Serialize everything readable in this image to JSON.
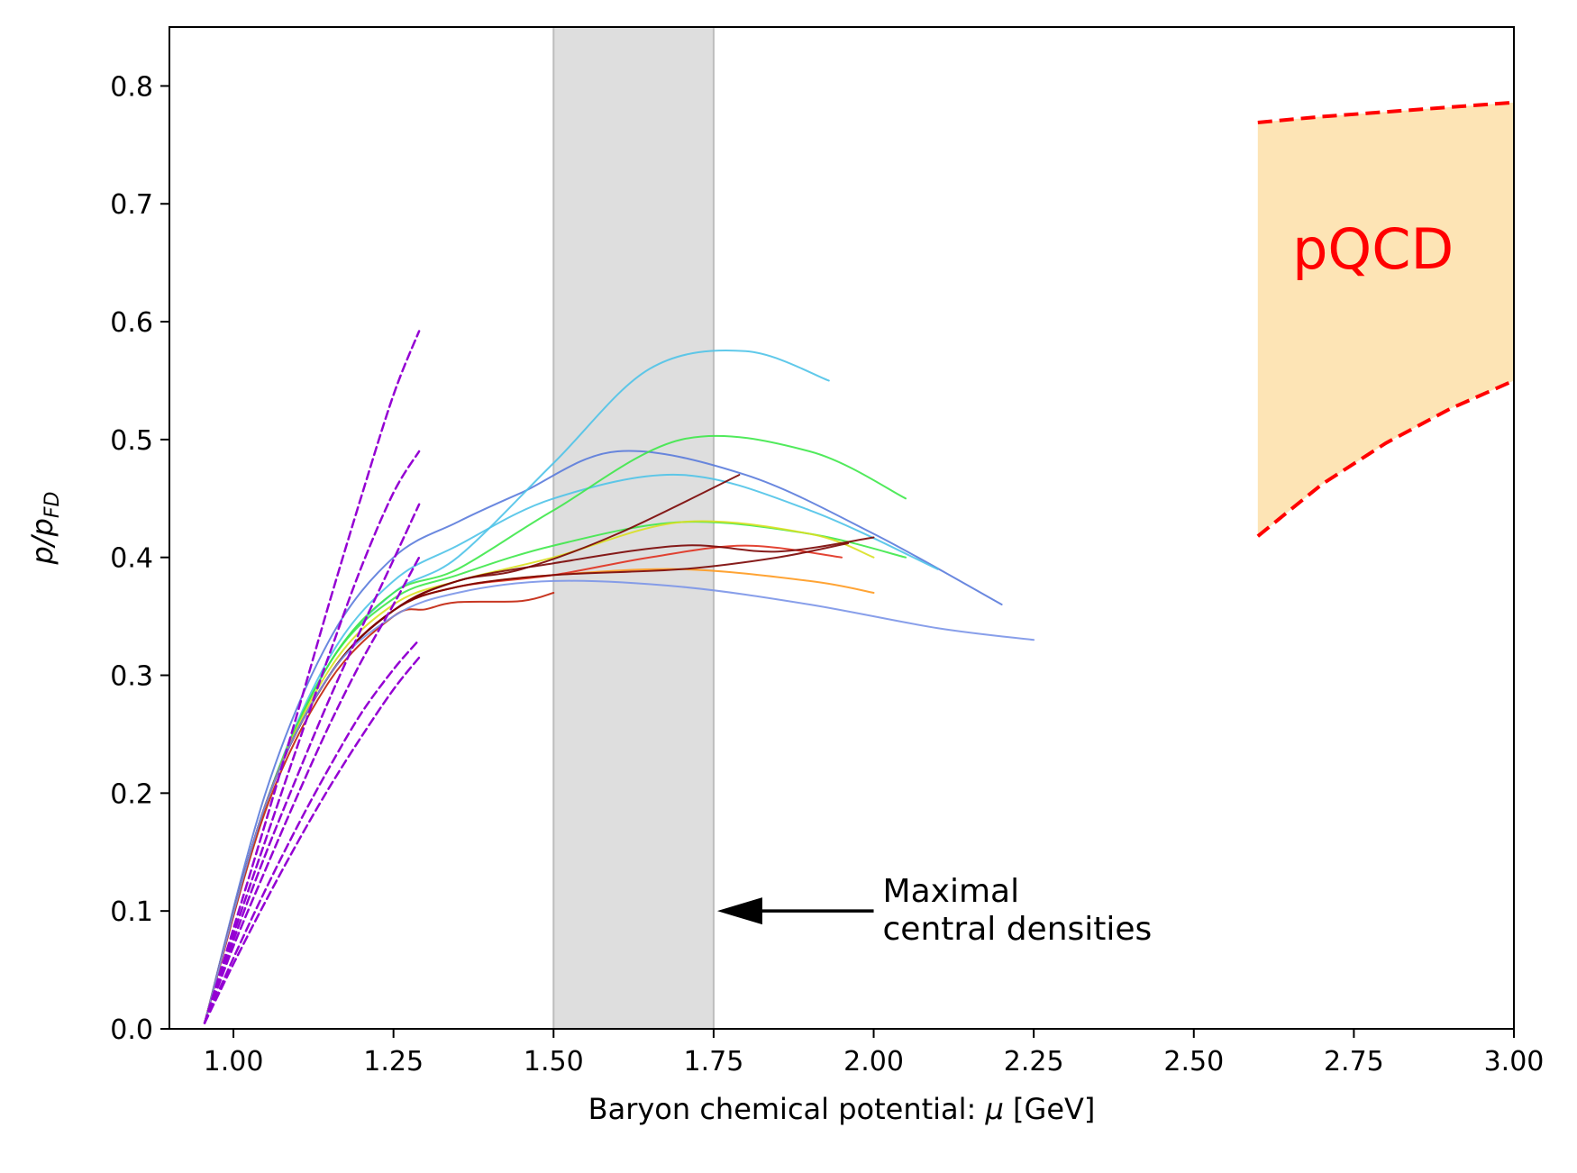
{
  "chart_data": {
    "type": "line",
    "title": "",
    "xlabel_prefix": "Baryon chemical potential: ",
    "xlabel_symbol": "μ",
    "xlabel_suffix": " [GeV]",
    "ylabel_main": "p/p",
    "ylabel_sub": "FD",
    "xlim": [
      0.9,
      3.0
    ],
    "ylim": [
      0.0,
      0.85
    ],
    "xticks": [
      {
        "value": 1.0,
        "label": "1.00"
      },
      {
        "value": 1.25,
        "label": "1.25"
      },
      {
        "value": 1.5,
        "label": "1.50"
      },
      {
        "value": 1.75,
        "label": "1.75"
      },
      {
        "value": 2.0,
        "label": "2.00"
      },
      {
        "value": 2.25,
        "label": "2.25"
      },
      {
        "value": 2.5,
        "label": "2.50"
      },
      {
        "value": 2.75,
        "label": "2.75"
      },
      {
        "value": 3.0,
        "label": "3.00"
      }
    ],
    "yticks": [
      {
        "value": 0.0,
        "label": "0.0"
      },
      {
        "value": 0.1,
        "label": "0.1"
      },
      {
        "value": 0.2,
        "label": "0.2"
      },
      {
        "value": 0.3,
        "label": "0.3"
      },
      {
        "value": 0.4,
        "label": "0.4"
      },
      {
        "value": 0.5,
        "label": "0.5"
      },
      {
        "value": 0.6,
        "label": "0.6"
      },
      {
        "value": 0.7,
        "label": "0.7"
      },
      {
        "value": 0.8,
        "label": "0.8"
      }
    ],
    "shaded_band": {
      "x_start": 1.5,
      "x_end": 1.75,
      "color": "#dedede"
    },
    "pqcd_region": {
      "label": "pQCD",
      "fill_color": "#fde4b5",
      "line_color": "#ff0000",
      "label_x": 2.78,
      "label_y": 0.645,
      "upper": {
        "x": [
          2.6,
          2.7,
          2.8,
          2.9,
          3.0
        ],
        "y": [
          0.769,
          0.774,
          0.778,
          0.782,
          0.786
        ]
      },
      "lower": {
        "x": [
          2.6,
          2.7,
          2.8,
          2.9,
          3.0
        ],
        "y": [
          0.418,
          0.462,
          0.497,
          0.526,
          0.55
        ]
      }
    },
    "annotation": {
      "line1": "Maximal",
      "line2": "central densities",
      "arrow_from": {
        "x": 2.0,
        "y": 0.1
      },
      "arrow_to": {
        "x": 1.75,
        "y": 0.1
      }
    },
    "series": [
      {
        "name": "dashed-low-density-1",
        "style": "dashed",
        "color": "#9400d3",
        "x": [
          0.955,
          1.0,
          1.05,
          1.1,
          1.15,
          1.2,
          1.25,
          1.29
        ],
        "y": [
          0.005,
          0.085,
          0.175,
          0.268,
          0.362,
          0.452,
          0.538,
          0.592
        ]
      },
      {
        "name": "dashed-low-density-2",
        "style": "dashed",
        "color": "#9400d3",
        "x": [
          0.955,
          1.0,
          1.05,
          1.1,
          1.15,
          1.2,
          1.25,
          1.29
        ],
        "y": [
          0.005,
          0.08,
          0.16,
          0.24,
          0.318,
          0.392,
          0.455,
          0.49
        ]
      },
      {
        "name": "dashed-low-density-3",
        "style": "dashed",
        "color": "#9400d3",
        "x": [
          0.955,
          1.0,
          1.05,
          1.1,
          1.15,
          1.2,
          1.25,
          1.29
        ],
        "y": [
          0.005,
          0.075,
          0.148,
          0.215,
          0.28,
          0.34,
          0.398,
          0.445
        ]
      },
      {
        "name": "dashed-low-density-4",
        "style": "dashed",
        "color": "#9400d3",
        "x": [
          0.955,
          1.0,
          1.05,
          1.1,
          1.15,
          1.2,
          1.25,
          1.29
        ],
        "y": [
          0.005,
          0.07,
          0.135,
          0.198,
          0.258,
          0.312,
          0.36,
          0.4
        ]
      },
      {
        "name": "dashed-low-density-5",
        "style": "dashed",
        "color": "#9400d3",
        "x": [
          0.955,
          1.0,
          1.05,
          1.1,
          1.15,
          1.2,
          1.25,
          1.29
        ],
        "y": [
          0.005,
          0.06,
          0.118,
          0.172,
          0.222,
          0.268,
          0.305,
          0.33
        ]
      },
      {
        "name": "dashed-low-density-6",
        "style": "dashed",
        "color": "#9400d3",
        "x": [
          0.955,
          1.0,
          1.05,
          1.1,
          1.15,
          1.2,
          1.25,
          1.29
        ],
        "y": [
          0.005,
          0.055,
          0.108,
          0.158,
          0.205,
          0.248,
          0.288,
          0.315
        ]
      },
      {
        "name": "model-blue-high",
        "style": "solid",
        "color": "#5a7bdc",
        "x": [
          0.955,
          1.05,
          1.15,
          1.25,
          1.35,
          1.45,
          1.6,
          1.8,
          2.0,
          2.2
        ],
        "y": [
          0.005,
          0.2,
          0.33,
          0.4,
          0.43,
          0.455,
          0.49,
          0.47,
          0.42,
          0.36
        ]
      },
      {
        "name": "model-cyan-high",
        "style": "solid",
        "color": "#4fc3e8",
        "x": [
          0.955,
          1.05,
          1.15,
          1.25,
          1.35,
          1.5,
          1.65,
          1.8,
          1.93
        ],
        "y": [
          0.005,
          0.19,
          0.31,
          0.37,
          0.4,
          0.48,
          0.56,
          0.575,
          0.55
        ]
      },
      {
        "name": "model-cyan-mid",
        "style": "solid",
        "color": "#4fc3e8",
        "x": [
          0.955,
          1.05,
          1.15,
          1.25,
          1.35,
          1.5,
          1.7,
          1.9,
          2.1
        ],
        "y": [
          0.005,
          0.19,
          0.315,
          0.38,
          0.41,
          0.45,
          0.47,
          0.44,
          0.39
        ]
      },
      {
        "name": "model-green-high",
        "style": "solid",
        "color": "#3ee84a",
        "x": [
          0.955,
          1.05,
          1.15,
          1.25,
          1.35,
          1.5,
          1.7,
          1.9,
          2.05
        ],
        "y": [
          0.005,
          0.19,
          0.31,
          0.37,
          0.39,
          0.44,
          0.5,
          0.49,
          0.45
        ]
      },
      {
        "name": "model-green-mid",
        "style": "solid",
        "color": "#3ee84a",
        "x": [
          0.955,
          1.05,
          1.15,
          1.25,
          1.35,
          1.5,
          1.7,
          1.9,
          2.05
        ],
        "y": [
          0.005,
          0.19,
          0.31,
          0.365,
          0.385,
          0.41,
          0.43,
          0.42,
          0.4
        ]
      },
      {
        "name": "model-yellow",
        "style": "solid",
        "color": "#d9e021",
        "x": [
          0.955,
          1.05,
          1.15,
          1.25,
          1.35,
          1.5,
          1.7,
          1.9,
          2.0
        ],
        "y": [
          0.005,
          0.19,
          0.305,
          0.36,
          0.38,
          0.4,
          0.43,
          0.42,
          0.4
        ]
      },
      {
        "name": "model-orange",
        "style": "solid",
        "color": "#ff9a1f",
        "x": [
          0.955,
          1.05,
          1.15,
          1.25,
          1.35,
          1.5,
          1.7,
          1.9,
          2.0
        ],
        "y": [
          0.005,
          0.19,
          0.3,
          0.355,
          0.375,
          0.385,
          0.39,
          0.38,
          0.37
        ]
      },
      {
        "name": "model-red",
        "style": "solid",
        "color": "#e0301e",
        "x": [
          0.955,
          1.05,
          1.15,
          1.25,
          1.35,
          1.5,
          1.65,
          1.8,
          1.95
        ],
        "y": [
          0.005,
          0.19,
          0.3,
          0.355,
          0.375,
          0.385,
          0.4,
          0.41,
          0.4
        ]
      },
      {
        "name": "model-darkred-1",
        "style": "solid",
        "color": "#7a0403",
        "x": [
          0.955,
          1.05,
          1.15,
          1.25,
          1.35,
          1.45,
          1.6,
          1.79
        ],
        "y": [
          0.005,
          0.19,
          0.3,
          0.355,
          0.38,
          0.39,
          0.42,
          0.47
        ]
      },
      {
        "name": "model-darkred-2",
        "style": "solid",
        "color": "#7a0403",
        "x": [
          0.955,
          1.05,
          1.15,
          1.25,
          1.35,
          1.5,
          1.7,
          1.85,
          2.0
        ],
        "y": [
          0.005,
          0.19,
          0.3,
          0.355,
          0.38,
          0.395,
          0.41,
          0.405,
          0.417
        ]
      },
      {
        "name": "model-darkred-3",
        "style": "solid",
        "color": "#7a0403",
        "x": [
          0.955,
          1.05,
          1.15,
          1.25,
          1.35,
          1.5,
          1.7,
          1.85,
          1.96
        ],
        "y": [
          0.005,
          0.19,
          0.3,
          0.355,
          0.375,
          0.385,
          0.39,
          0.4,
          0.412
        ]
      },
      {
        "name": "model-red-dip",
        "style": "solid",
        "color": "#c2210a",
        "x": [
          0.955,
          1.05,
          1.15,
          1.25,
          1.3,
          1.35,
          1.45,
          1.5
        ],
        "y": [
          0.005,
          0.185,
          0.295,
          0.35,
          0.356,
          0.362,
          0.363,
          0.37
        ]
      },
      {
        "name": "model-blue-low",
        "style": "solid",
        "color": "#7b95e8",
        "x": [
          0.955,
          1.05,
          1.15,
          1.25,
          1.35,
          1.5,
          1.7,
          1.9,
          2.1,
          2.25
        ],
        "y": [
          0.005,
          0.19,
          0.3,
          0.35,
          0.37,
          0.38,
          0.375,
          0.36,
          0.34,
          0.33
        ]
      }
    ]
  }
}
